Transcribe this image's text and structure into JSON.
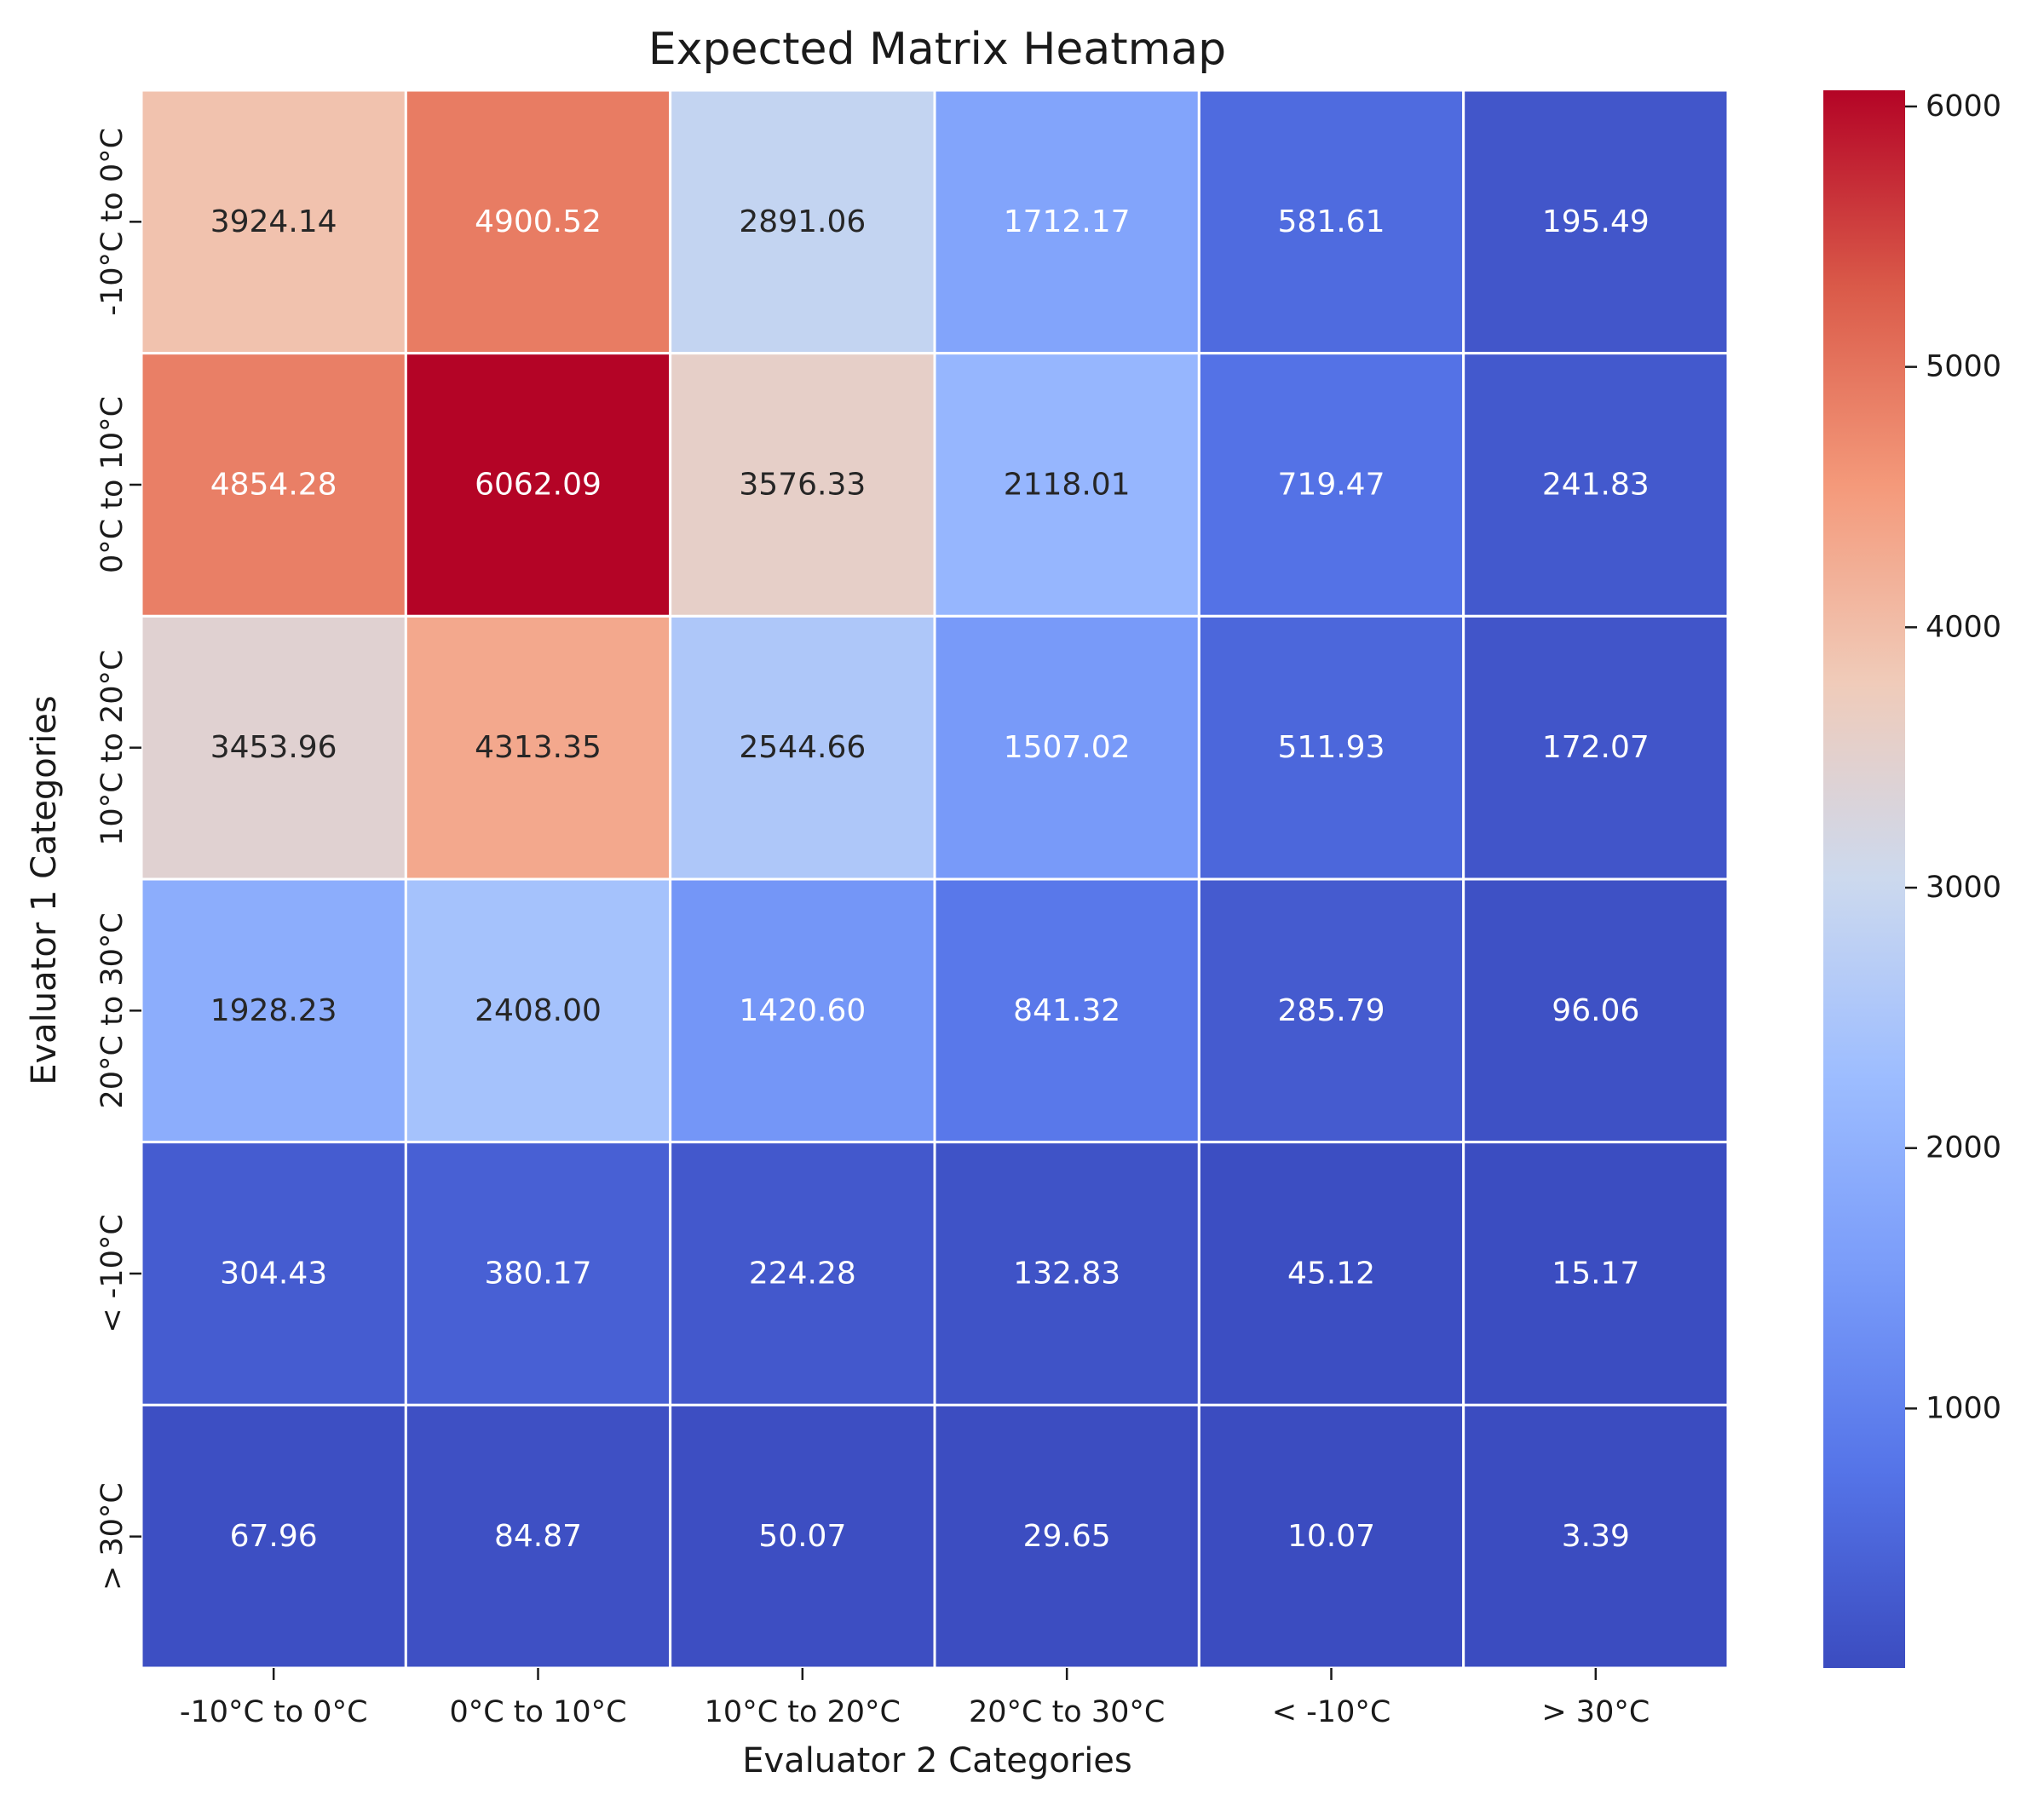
{
  "chart_data": {
    "type": "heatmap",
    "title": "Expected Matrix Heatmap",
    "xlabel": "Evaluator 2 Categories",
    "ylabel": "Evaluator 1 Categories",
    "x_categories": [
      "-10°C to 0°C",
      "0°C to 10°C",
      "10°C to 20°C",
      "20°C to 30°C",
      "< -10°C",
      "> 30°C"
    ],
    "y_categories": [
      "-10°C to 0°C",
      "0°C to 10°C",
      "10°C to 20°C",
      "20°C to 30°C",
      "< -10°C",
      "> 30°C"
    ],
    "values": [
      [
        3924.14,
        4900.52,
        2891.06,
        1712.17,
        581.61,
        195.49
      ],
      [
        4854.28,
        6062.09,
        3576.33,
        2118.01,
        719.47,
        241.83
      ],
      [
        3453.96,
        4313.35,
        2544.66,
        1507.02,
        511.93,
        172.07
      ],
      [
        1928.23,
        2408.0,
        1420.6,
        841.32,
        285.79,
        96.06
      ],
      [
        304.43,
        380.17,
        224.28,
        132.83,
        45.12,
        15.17
      ],
      [
        67.96,
        84.87,
        50.07,
        29.65,
        10.07,
        3.39
      ]
    ],
    "value_format_decimals": 2,
    "colormap": "coolwarm",
    "vmin": 3.39,
    "vmax": 6062.09,
    "colorbar_ticks": [
      1000,
      2000,
      3000,
      4000,
      5000,
      6000
    ],
    "cell_separator_color": "#ffffff"
  }
}
